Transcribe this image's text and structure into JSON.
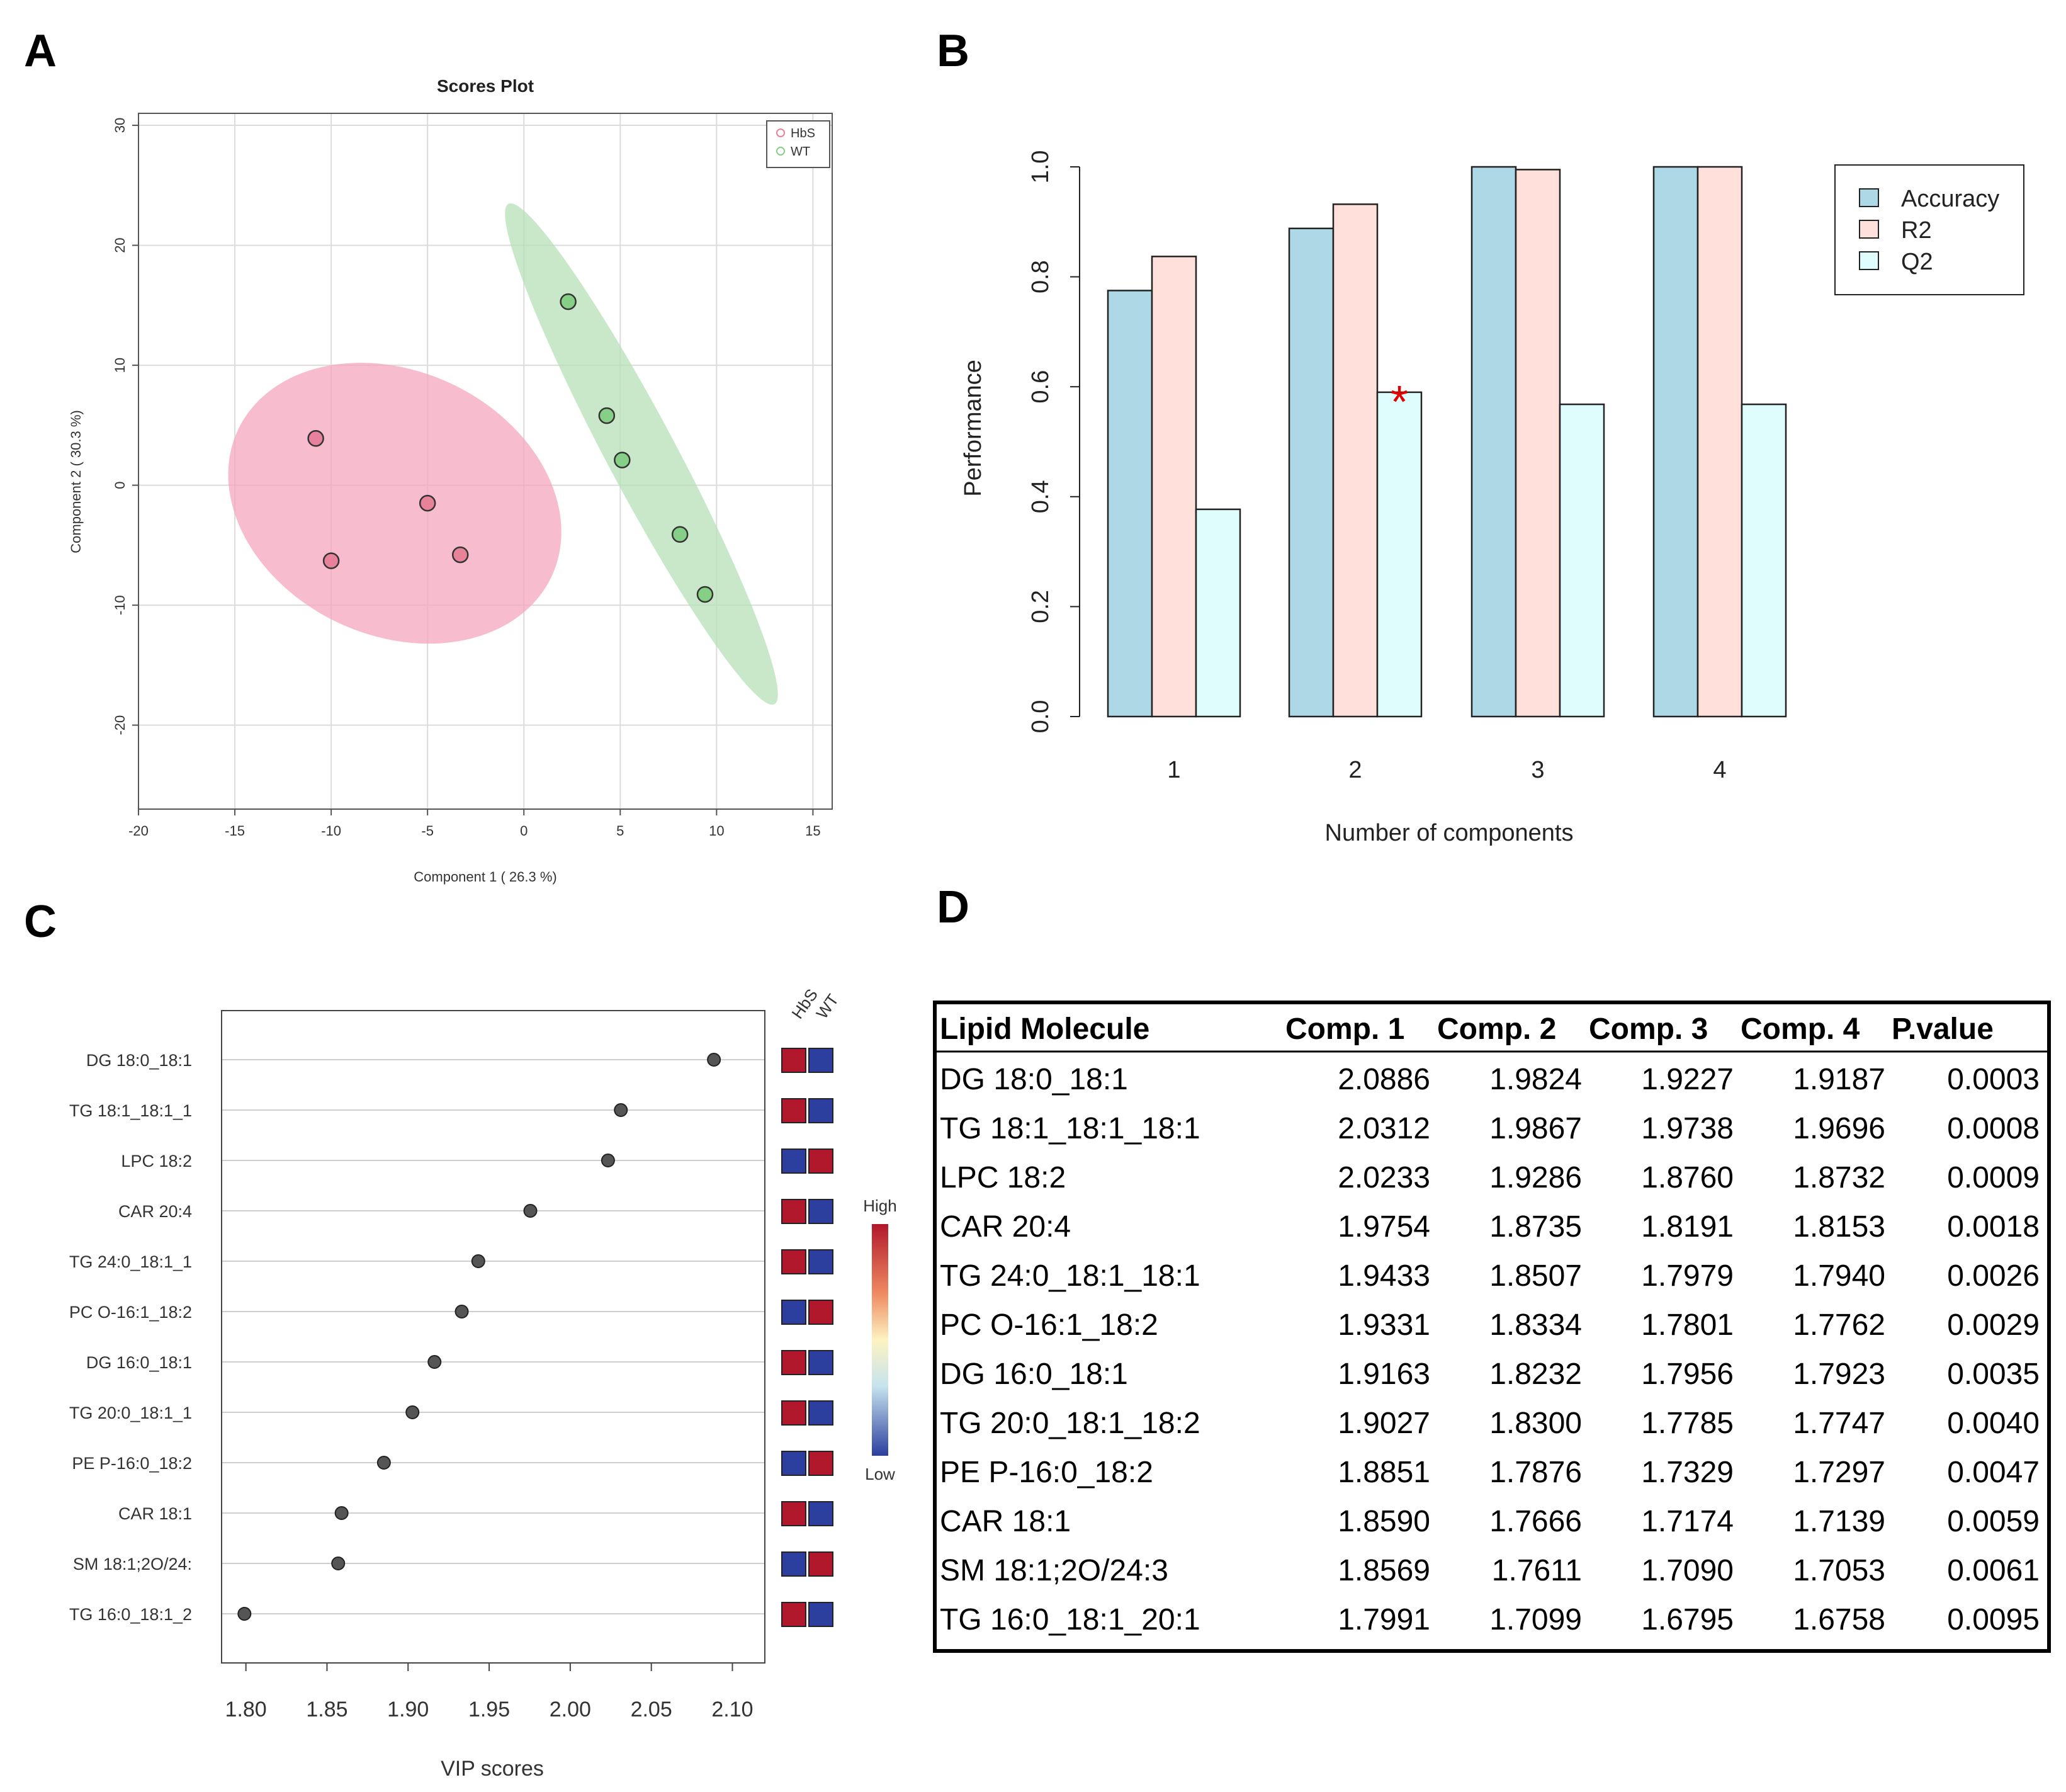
{
  "panels": {
    "a": "A",
    "b": "B",
    "c": "C",
    "d": "D"
  },
  "chart_data": [
    {
      "type": "scatter",
      "title": "Scores Plot",
      "xlabel": "Component 1 ( 26.3 %)",
      "ylabel": "Component 2 ( 30.3 %)",
      "xlim": [
        -20,
        16
      ],
      "ylim": [
        -27,
        31
      ],
      "xticks": [
        "-20",
        "-15",
        "-10",
        "-5",
        "0",
        "5",
        "10",
        "15"
      ],
      "yticks": [
        "30",
        "20",
        "10",
        "0",
        "-10",
        "-20"
      ],
      "legend": [
        "HbS",
        "WT"
      ],
      "colors": {
        "HbS": "#e8829a",
        "WT": "#86cf86",
        "HbS_ellipse": "#f4a6bd",
        "WT_ellipse": "#b7e0b7"
      },
      "series": [
        {
          "name": "HbS",
          "points": [
            [
              -10.8,
              3.9
            ],
            [
              -10,
              -6.3
            ],
            [
              -5,
              -1.5
            ],
            [
              -3.3,
              -5.8
            ]
          ]
        },
        {
          "name": "WT",
          "points": [
            [
              2.3,
              15.3
            ],
            [
              4.3,
              5.8
            ],
            [
              5.1,
              2.1
            ],
            [
              8.1,
              -4.1
            ],
            [
              9.4,
              -9.1
            ]
          ]
        }
      ]
    },
    {
      "type": "bar",
      "categories": [
        "1",
        "2",
        "3",
        "4"
      ],
      "xlabel": "Number of components",
      "ylabel": "Performance",
      "ylim": [
        0,
        1.0
      ],
      "yticks": [
        "0.0",
        "0.2",
        "0.4",
        "0.6",
        "0.8",
        "1.0"
      ],
      "series": [
        {
          "name": "Accuracy",
          "values": [
            0.775,
            0.888,
            1.0,
            1.0
          ],
          "color": "#add8e6"
        },
        {
          "name": "R2",
          "values": [
            0.837,
            0.932,
            0.995,
            1.0
          ],
          "color": "#ffe0db"
        },
        {
          "name": "Q2",
          "values": [
            0.377,
            0.59,
            0.568,
            0.568
          ],
          "color": "#e0fdfd"
        }
      ],
      "marker": {
        "text": "*",
        "category": "2",
        "series": "Q2",
        "color": "#e00000"
      }
    },
    {
      "type": "scatter",
      "subtype": "dot-plot",
      "xlabel": "VIP scores",
      "xlim": [
        1.785,
        2.12
      ],
      "xticks": [
        "1.80",
        "1.85",
        "1.90",
        "1.95",
        "2.00",
        "2.05",
        "2.10"
      ],
      "groups": [
        "HbS",
        "WT"
      ],
      "legend_high": "High",
      "legend_low": "Low",
      "items": [
        {
          "label": "DG 18:0_18:1",
          "value": 2.0886,
          "hbs": "high",
          "wt": "low"
        },
        {
          "label": "TG 18:1_18:1_1",
          "value": 2.0312,
          "hbs": "high",
          "wt": "low"
        },
        {
          "label": "LPC 18:2",
          "value": 2.0233,
          "hbs": "low",
          "wt": "high"
        },
        {
          "label": "CAR 20:4",
          "value": 1.9754,
          "hbs": "high",
          "wt": "low"
        },
        {
          "label": "TG 24:0_18:1_1",
          "value": 1.9433,
          "hbs": "high",
          "wt": "low"
        },
        {
          "label": "PC O-16:1_18:2",
          "value": 1.9331,
          "hbs": "low",
          "wt": "high"
        },
        {
          "label": "DG 16:0_18:1",
          "value": 1.9163,
          "hbs": "high",
          "wt": "low"
        },
        {
          "label": "TG 20:0_18:1_1",
          "value": 1.9027,
          "hbs": "high",
          "wt": "low"
        },
        {
          "label": "PE P-16:0_18:2",
          "value": 1.8851,
          "hbs": "low",
          "wt": "high"
        },
        {
          "label": "CAR 18:1",
          "value": 1.859,
          "hbs": "high",
          "wt": "low"
        },
        {
          "label": "SM 18:1;2O/24:",
          "value": 1.8569,
          "hbs": "low",
          "wt": "high"
        },
        {
          "label": "TG 16:0_18:1_2",
          "value": 1.7991,
          "hbs": "high",
          "wt": "low"
        }
      ],
      "colors": {
        "high": "#b2182b",
        "low": "#2c3e9e",
        "dot": "#555555"
      }
    },
    {
      "type": "table",
      "columns": [
        "Lipid Molecule",
        "Comp. 1",
        "Comp. 2",
        "Comp. 3",
        "Comp. 4",
        "P.value"
      ],
      "rows": [
        [
          "DG 18:0_18:1",
          "2.0886",
          "1.9824",
          "1.9227",
          "1.9187",
          "0.0003"
        ],
        [
          "TG 18:1_18:1_18:1",
          "2.0312",
          "1.9867",
          "1.9738",
          "1.9696",
          "0.0008"
        ],
        [
          "LPC 18:2",
          "2.0233",
          "1.9286",
          "1.8760",
          "1.8732",
          "0.0009"
        ],
        [
          "CAR 20:4",
          "1.9754",
          "1.8735",
          "1.8191",
          "1.8153",
          "0.0018"
        ],
        [
          "TG 24:0_18:1_18:1",
          "1.9433",
          "1.8507",
          "1.7979",
          "1.7940",
          "0.0026"
        ],
        [
          "PC O-16:1_18:2",
          "1.9331",
          "1.8334",
          "1.7801",
          "1.7762",
          "0.0029"
        ],
        [
          "DG 16:0_18:1",
          "1.9163",
          "1.8232",
          "1.7956",
          "1.7923",
          "0.0035"
        ],
        [
          "TG 20:0_18:1_18:2",
          "1.9027",
          "1.8300",
          "1.7785",
          "1.7747",
          "0.0040"
        ],
        [
          "PE P-16:0_18:2",
          "1.8851",
          "1.7876",
          "1.7329",
          "1.7297",
          "0.0047"
        ],
        [
          "CAR 18:1",
          "1.8590",
          "1.7666",
          "1.7174",
          "1.7139",
          "0.0059"
        ],
        [
          "SM 18:1;2O/24:3",
          "1.8569",
          "1.7611",
          "1.7090",
          "1.7053",
          "0.0061"
        ],
        [
          "TG 16:0_18:1_20:1",
          "1.7991",
          "1.7099",
          "1.6795",
          "1.6758",
          "0.0095"
        ]
      ]
    }
  ]
}
